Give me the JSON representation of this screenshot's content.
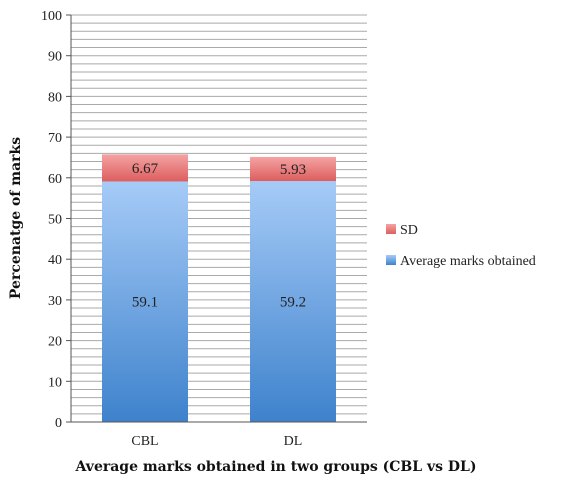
{
  "chart_data": {
    "type": "bar",
    "stacked": true,
    "categories": [
      "CBL",
      "DL"
    ],
    "series": [
      {
        "name": "Average marks obtained",
        "values": [
          59.1,
          59.2
        ],
        "color": "#7ab0ea"
      },
      {
        "name": "SD",
        "values": [
          6.67,
          5.93
        ],
        "color": "#e77575"
      }
    ],
    "xlabel": "Average marks obtained in two groups (CBL vs DL)",
    "ylabel": "Percenatge of marks",
    "ylim": [
      0,
      100
    ],
    "yticks": [
      0,
      10,
      20,
      30,
      40,
      50,
      60,
      70,
      80,
      90,
      100
    ],
    "minor_gridline_step": 2,
    "grid": true,
    "legend_position": "right"
  }
}
